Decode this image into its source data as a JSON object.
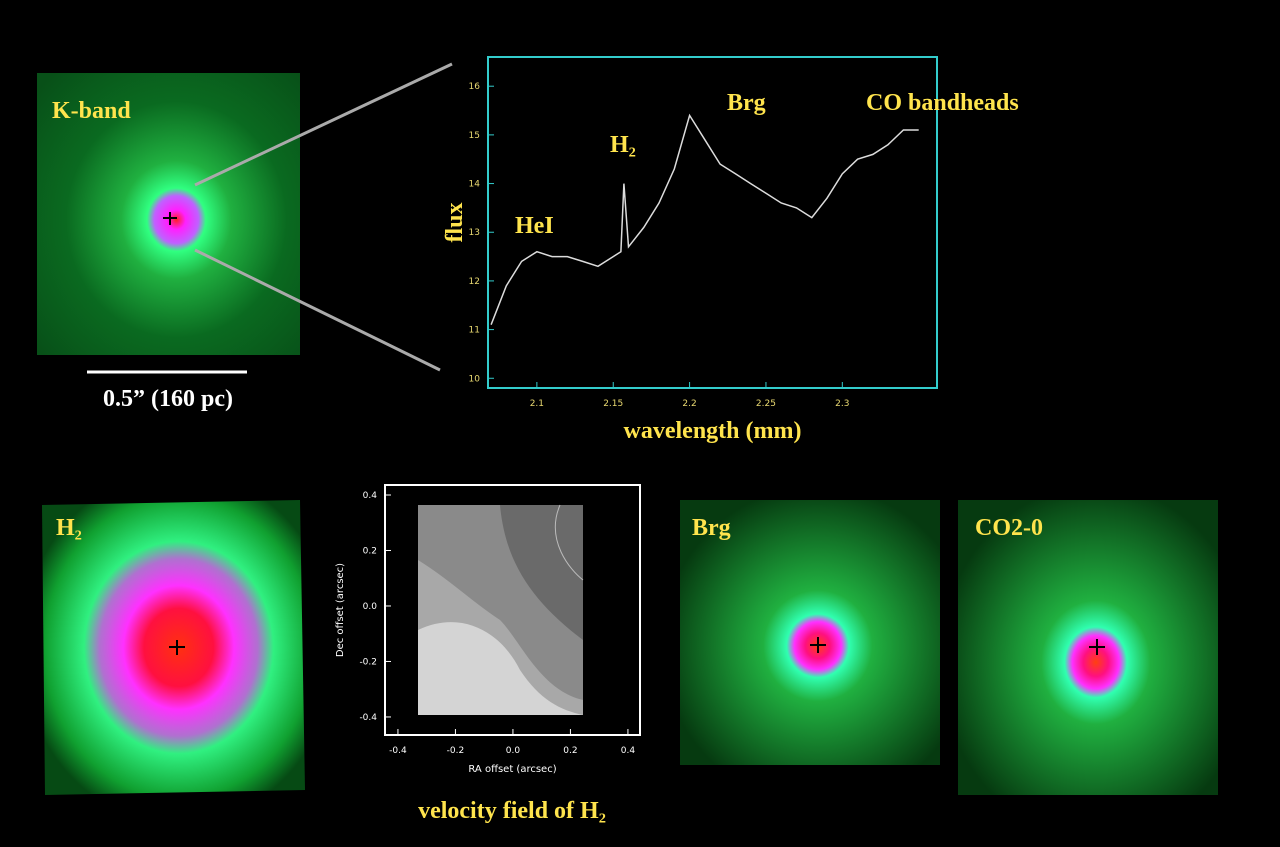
{
  "panels": {
    "kband": {
      "label": "K-band",
      "scale_bar": "0.5” (160 pc)"
    },
    "h2": {
      "label": "H₂"
    },
    "brg": {
      "label": "Brg"
    },
    "co": {
      "label": "CO2-0"
    }
  },
  "chart_data": [
    {
      "type": "line",
      "xlabel": "wavelength (mm)",
      "ylabel": "flux",
      "color": "#dcdcdc",
      "annotations": [
        "HeI",
        "H₂",
        "Brg",
        "CO bandheads"
      ],
      "x": [
        2.07,
        2.08,
        2.09,
        2.1,
        2.11,
        2.12,
        2.13,
        2.14,
        2.15,
        2.155,
        2.157,
        2.16,
        2.17,
        2.18,
        2.19,
        2.2,
        2.21,
        2.22,
        2.23,
        2.24,
        2.25,
        2.26,
        2.27,
        2.28,
        2.29,
        2.3,
        2.31,
        2.32,
        2.33,
        2.34,
        2.35
      ],
      "values": [
        11.1,
        11.9,
        12.4,
        12.6,
        12.5,
        12.5,
        12.4,
        12.3,
        12.5,
        12.6,
        14.0,
        12.7,
        13.1,
        13.6,
        14.3,
        15.4,
        14.9,
        14.4,
        14.2,
        14.0,
        13.8,
        13.6,
        13.5,
        13.3,
        13.7,
        14.2,
        14.5,
        14.6,
        14.8,
        15.1,
        15.1
      ],
      "xlim": [
        2.068,
        2.362
      ],
      "ylim": [
        9.8,
        16.6
      ],
      "xticks": [
        2.1,
        2.15,
        2.2,
        2.25,
        2.3
      ],
      "yticks": [
        10,
        11,
        12,
        13,
        14,
        15,
        16
      ]
    },
    {
      "type": "contour",
      "xlabel": "RA offset (arcsec)",
      "ylabel": "Dec offset (arcsec)",
      "caption": "velocity field of H₂",
      "xlim": [
        -0.445,
        0.442
      ],
      "ylim": [
        -0.465,
        0.436
      ],
      "xticks": [
        -0.4,
        -0.2,
        {
          "value": 0,
          "label": "0.0"
        },
        0.2,
        0.4
      ],
      "yticks": [
        -0.4,
        -0.2,
        {
          "value": 0,
          "label": "0.0"
        },
        0.2,
        0.4
      ]
    }
  ]
}
